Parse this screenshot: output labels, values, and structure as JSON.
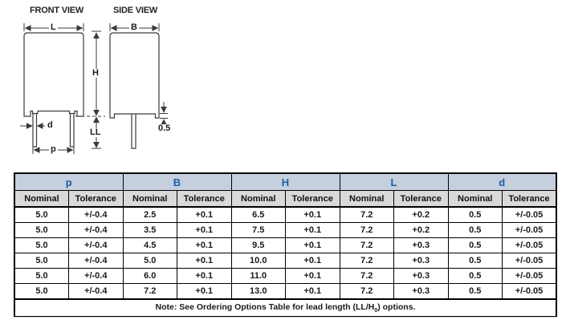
{
  "diagram": {
    "front_view": {
      "title": "FRONT VIEW",
      "dim_length": "L",
      "dim_height": "H",
      "dim_lead_length": "LL",
      "dim_lead_diameter": "d",
      "dim_lead_spacing": "p"
    },
    "side_view": {
      "title": "SIDE VIEW",
      "dim_width": "B",
      "dim_standoff": "0.5"
    }
  },
  "table": {
    "groups": [
      {
        "label": "p"
      },
      {
        "label": "B"
      },
      {
        "label": "H"
      },
      {
        "label": "L"
      },
      {
        "label": "d"
      }
    ],
    "subheaders": [
      "Nominal",
      "Tolerance"
    ],
    "rows": [
      [
        "5.0",
        "+/-0.4",
        "2.5",
        "+0.1",
        "6.5",
        "+0.1",
        "7.2",
        "+0.2",
        "0.5",
        "+/-0.05"
      ],
      [
        "5.0",
        "+/-0.4",
        "3.5",
        "+0.1",
        "7.5",
        "+0.1",
        "7.2",
        "+0.2",
        "0.5",
        "+/-0.05"
      ],
      [
        "5.0",
        "+/-0.4",
        "4.5",
        "+0.1",
        "9.5",
        "+0.1",
        "7.2",
        "+0.3",
        "0.5",
        "+/-0.05"
      ],
      [
        "5.0",
        "+/-0.4",
        "5.0",
        "+0.1",
        "10.0",
        "+0.1",
        "7.2",
        "+0.3",
        "0.5",
        "+/-0.05"
      ],
      [
        "5.0",
        "+/-0.4",
        "6.0",
        "+0.1",
        "11.0",
        "+0.1",
        "7.2",
        "+0.3",
        "0.5",
        "+/-0.05"
      ],
      [
        "5.0",
        "+/-0.4",
        "7.2",
        "+0.1",
        "13.0",
        "+0.1",
        "7.2",
        "+0.3",
        "0.5",
        "+/-0.05"
      ]
    ],
    "note": {
      "prefix": "Note: See Ordering Options Table for lead length (LL/H",
      "sub": "0",
      "suffix": ") options."
    },
    "colors": {
      "group_header_bg": "#c6cfde",
      "group_header_text": "#1a5da8",
      "subheader_bg": "#d9d9d9",
      "border": "#000000"
    }
  }
}
